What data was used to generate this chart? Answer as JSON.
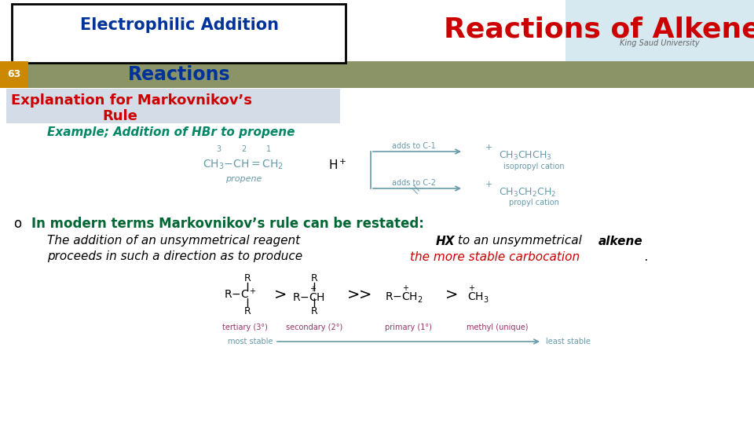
{
  "title": "Reactions of Alkene",
  "slide_number": "63",
  "header_line1": "Electrophilic Addition",
  "header_line2": "Reactions",
  "subheader_line1": "Explanation for Markovnikov’s",
  "subheader_line2": "Rule",
  "example_text": "Example; Addition of HBr to propene",
  "bullet_text_bold": "In modern terms Markovnikov’s rule can be restated:",
  "italic_text1": "The addition of an unsymmetrical reagent ",
  "italic_text1b": "HX",
  "italic_text1c": " to an unsymmetrical ",
  "italic_text1d": "alkene",
  "italic_text2": "proceeds in such a direction as to produce ",
  "italic_text2b": "the more stable carbocation",
  "italic_text2c": ".",
  "bg_color": "#ffffff",
  "title_color": "#cc0000",
  "header_box_border": "#000000",
  "header_text_color": "#003399",
  "olive_bar_color": "#8B9467",
  "slide_num_bg": "#cc8800",
  "subheader_bg": "#d4dce8",
  "subheader_text_color": "#cc0000",
  "example_color": "#008866",
  "bullet_color": "#006633",
  "italic_normal_color": "#000000",
  "italic_red_color": "#cc0000",
  "ksu_box_color": "#d6e8f0",
  "diagram_color": "#6699aa"
}
